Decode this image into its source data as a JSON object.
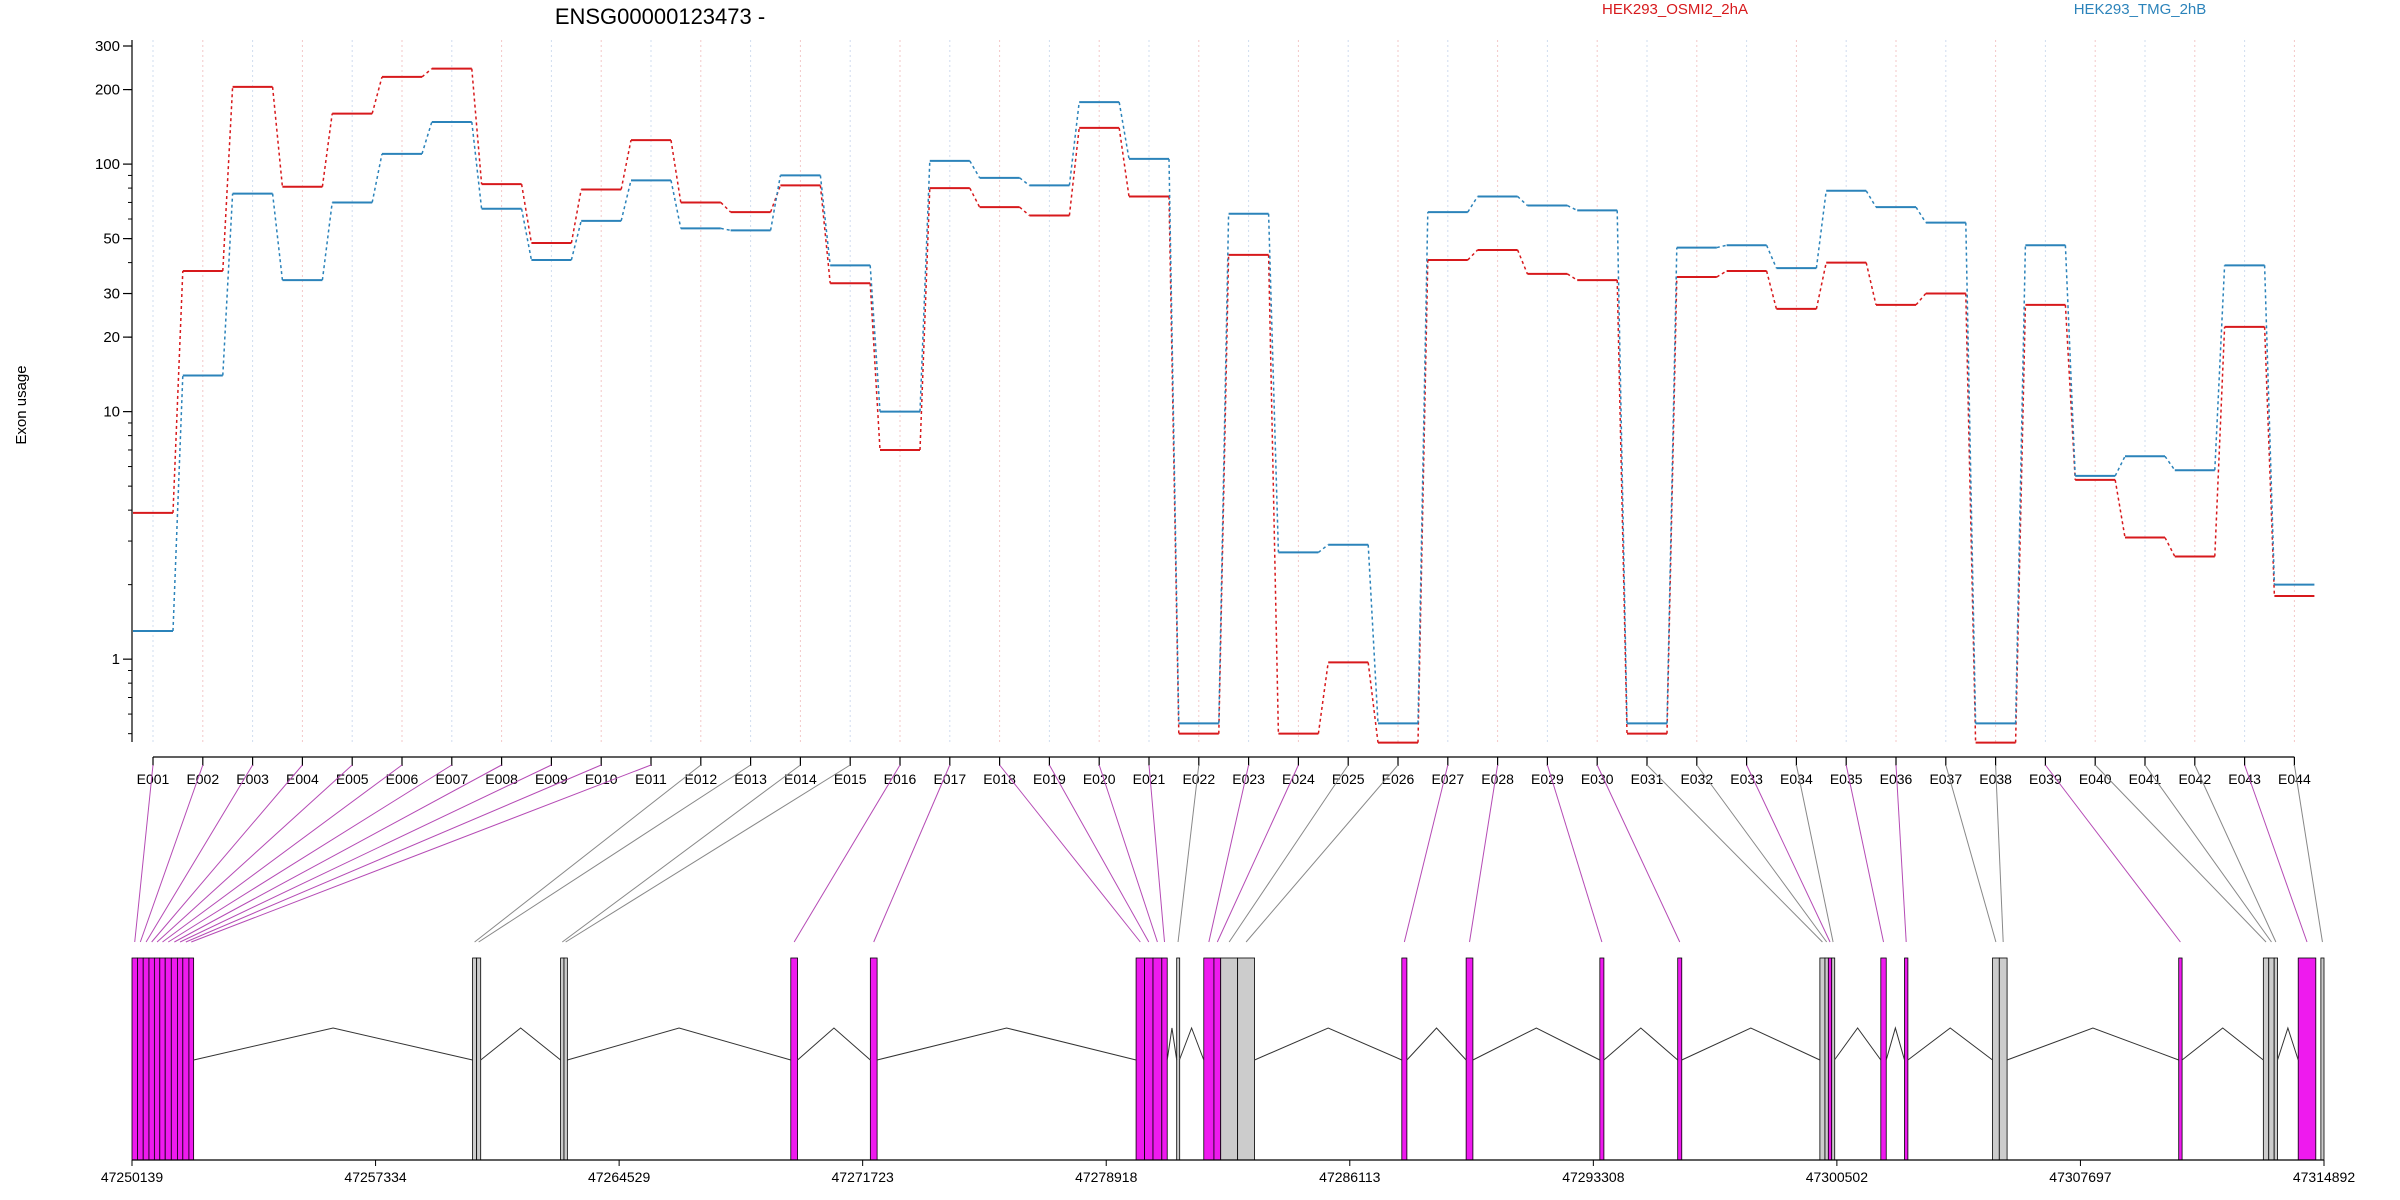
{
  "chart_data": {
    "type": "line",
    "title": "ENSG00000123473 -",
    "ylabel": "Exon usage",
    "xlabel": "",
    "y_scale": "log",
    "ylim": [
      0.45,
      300
    ],
    "y_ticks": [
      1,
      10,
      20,
      30,
      50,
      100,
      200,
      300
    ],
    "grid": "vertical dotted lines at each exon",
    "legend_placement": "top-right",
    "categories": [
      "E001",
      "E002",
      "E003",
      "E004",
      "E005",
      "E006",
      "E007",
      "E008",
      "E009",
      "E010",
      "E011",
      "E012",
      "E013",
      "E014",
      "E015",
      "E016",
      "E017",
      "E018",
      "E019",
      "E020",
      "E021",
      "E022",
      "E023",
      "E024",
      "E025",
      "E026",
      "E027",
      "E028",
      "E029",
      "E030",
      "E031",
      "E032",
      "E033",
      "E034",
      "E035",
      "E036",
      "E037",
      "E038",
      "E039",
      "E040",
      "E041",
      "E042",
      "E043",
      "E044"
    ],
    "series": [
      {
        "name": "HEK293_OSMI2_2hA",
        "color": "#d7191c",
        "values": [
          3.9,
          37,
          205,
          81,
          160,
          225,
          243,
          83,
          48,
          79,
          125,
          70,
          64,
          82,
          33,
          7,
          80,
          67,
          62,
          140,
          74,
          0.5,
          43,
          0.5,
          0.97,
          0.46,
          41,
          45,
          36,
          34,
          0.5,
          35,
          37,
          26,
          40,
          27,
          30,
          0.46,
          27,
          5.3,
          3.1,
          2.6,
          22,
          1.8
        ]
      },
      {
        "name": "HEK293_TMG_2hB",
        "color": "#2b83ba",
        "values": [
          1.3,
          14,
          76,
          34,
          70,
          110,
          148,
          66,
          41,
          59,
          86,
          55,
          54,
          90,
          39,
          10,
          103,
          88,
          82,
          178,
          105,
          0.55,
          63,
          2.7,
          2.9,
          0.55,
          64,
          74,
          68,
          65,
          0.55,
          46,
          47,
          38,
          78,
          67,
          58,
          0.55,
          47,
          5.5,
          6.6,
          5.8,
          39,
          2.0
        ]
      }
    ],
    "gene_model": {
      "coordinate_ticks": [
        "47250139",
        "47257334",
        "47264529",
        "47271723",
        "47278918",
        "47286113",
        "47293308",
        "47300502",
        "47307697",
        "47314892"
      ],
      "coordinate_range": [
        47250139,
        47314892
      ],
      "exon_color_significant": "#ee1aee",
      "exon_color_other": "#cccccc",
      "exons": [
        {
          "id": "E001",
          "start": 47250139,
          "end": 47250300,
          "significant": true
        },
        {
          "id": "E002",
          "start": 47250300,
          "end": 47250470,
          "significant": true
        },
        {
          "id": "E003",
          "start": 47250470,
          "end": 47250640,
          "significant": true
        },
        {
          "id": "E004",
          "start": 47250640,
          "end": 47250800,
          "significant": true
        },
        {
          "id": "E005",
          "start": 47250800,
          "end": 47250960,
          "significant": true
        },
        {
          "id": "E006",
          "start": 47250960,
          "end": 47251120,
          "significant": true
        },
        {
          "id": "E007",
          "start": 47251120,
          "end": 47251300,
          "significant": true
        },
        {
          "id": "E008",
          "start": 47251300,
          "end": 47251480,
          "significant": true
        },
        {
          "id": "E009",
          "start": 47251480,
          "end": 47251640,
          "significant": true
        },
        {
          "id": "E010",
          "start": 47251640,
          "end": 47251820,
          "significant": true
        },
        {
          "id": "E011",
          "start": 47251820,
          "end": 47251960,
          "significant": true
        },
        {
          "id": "E012",
          "start": 47260200,
          "end": 47260320,
          "significant": false
        },
        {
          "id": "E013",
          "start": 47260320,
          "end": 47260440,
          "significant": false
        },
        {
          "id": "E014",
          "start": 47262800,
          "end": 47262900,
          "significant": false
        },
        {
          "id": "E015",
          "start": 47262900,
          "end": 47263000,
          "significant": false
        },
        {
          "id": "E016",
          "start": 47269600,
          "end": 47269800,
          "significant": true
        },
        {
          "id": "E017",
          "start": 47271950,
          "end": 47272150,
          "significant": true
        },
        {
          "id": "E018",
          "start": 47279800,
          "end": 47280050,
          "significant": true
        },
        {
          "id": "E019",
          "start": 47280050,
          "end": 47280300,
          "significant": true
        },
        {
          "id": "E020",
          "start": 47280300,
          "end": 47280560,
          "significant": true
        },
        {
          "id": "E021",
          "start": 47280560,
          "end": 47280720,
          "significant": true
        },
        {
          "id": "E022",
          "start": 47281000,
          "end": 47281080,
          "significant": false
        },
        {
          "id": "E023",
          "start": 47281800,
          "end": 47282100,
          "significant": true
        },
        {
          "id": "E024",
          "start": 47282100,
          "end": 47282300,
          "significant": true
        },
        {
          "id": "E025",
          "start": 47282300,
          "end": 47282800,
          "significant": false
        },
        {
          "id": "E026",
          "start": 47282800,
          "end": 47283300,
          "significant": false
        },
        {
          "id": "E027",
          "start": 47287650,
          "end": 47287800,
          "significant": true
        },
        {
          "id": "E028",
          "start": 47289550,
          "end": 47289750,
          "significant": true
        },
        {
          "id": "E029",
          "start": 47293500,
          "end": 47293620,
          "significant": true
        },
        {
          "id": "E030",
          "start": 47295800,
          "end": 47295920,
          "significant": true
        },
        {
          "id": "E031",
          "start": 47300000,
          "end": 47300150,
          "significant": false
        },
        {
          "id": "E032",
          "start": 47300150,
          "end": 47300250,
          "significant": false
        },
        {
          "id": "E033",
          "start": 47300250,
          "end": 47300350,
          "significant": true
        },
        {
          "id": "E034",
          "start": 47300350,
          "end": 47300430,
          "significant": false
        },
        {
          "id": "E035",
          "start": 47301800,
          "end": 47301960,
          "significant": true
        },
        {
          "id": "E036",
          "start": 47302500,
          "end": 47302600,
          "significant": true
        },
        {
          "id": "E037",
          "start": 47305100,
          "end": 47305300,
          "significant": false
        },
        {
          "id": "E038",
          "start": 47305300,
          "end": 47305530,
          "significant": false
        },
        {
          "id": "E039",
          "start": 47310600,
          "end": 47310700,
          "significant": true
        },
        {
          "id": "E040",
          "start": 47313100,
          "end": 47313260,
          "significant": false
        },
        {
          "id": "E041",
          "start": 47313260,
          "end": 47313420,
          "significant": false
        },
        {
          "id": "E042",
          "start": 47313420,
          "end": 47313520,
          "significant": false
        },
        {
          "id": "E043",
          "start": 47314130,
          "end": 47314650,
          "significant": true
        },
        {
          "id": "E044",
          "start": 47314800,
          "end": 47314892,
          "significant": false
        }
      ]
    }
  }
}
